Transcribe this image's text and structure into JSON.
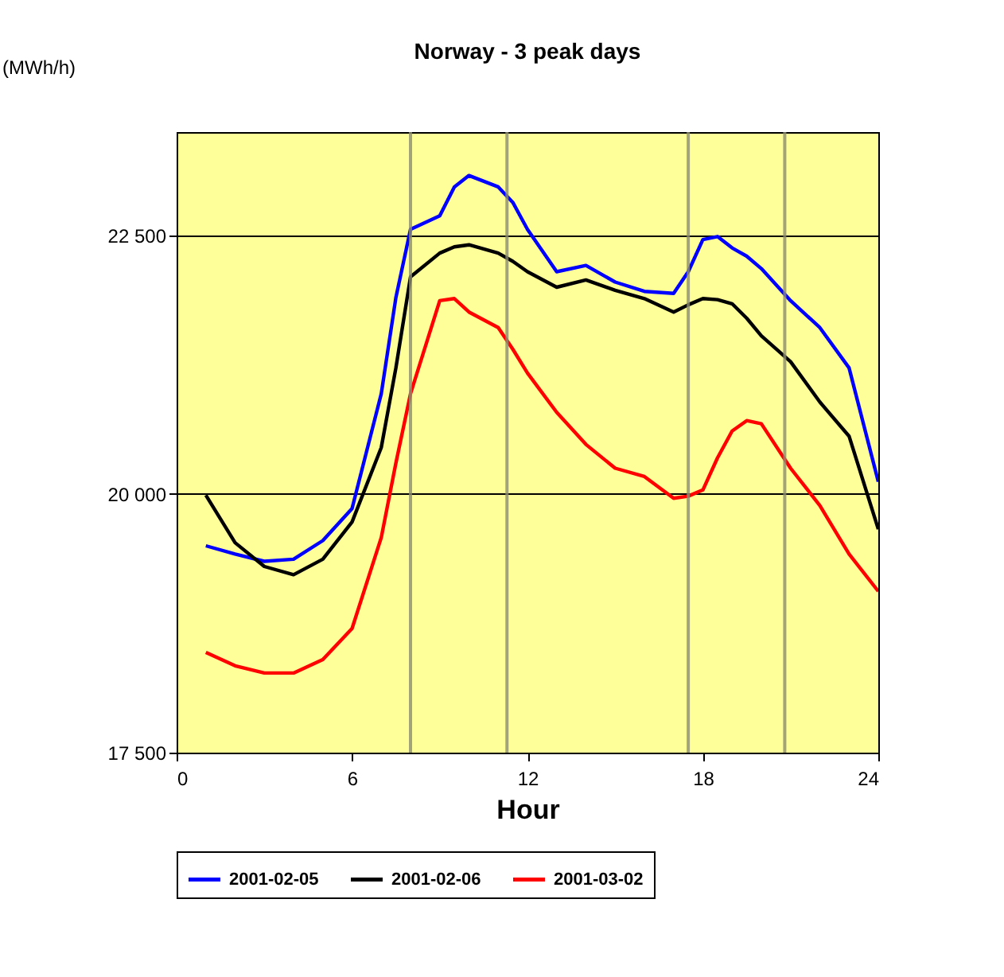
{
  "chart_data": {
    "type": "line",
    "title": "Norway - 3 peak days",
    "xlabel": "Hour",
    "ylabel": "(MWh/h)",
    "x": [
      1,
      2,
      3,
      4,
      5,
      6,
      7,
      7.5,
      8,
      9,
      9.5,
      10,
      11,
      11.5,
      12,
      13,
      14,
      15,
      16,
      17,
      17.5,
      18,
      18.5,
      19,
      19.5,
      20,
      21,
      22,
      23,
      24
    ],
    "series": [
      {
        "name": "2001-02-05",
        "color": "#0000ff",
        "values": [
          19500,
          19420,
          19350,
          19370,
          19550,
          19860,
          20970,
          21900,
          22560,
          22690,
          22970,
          23080,
          22970,
          22820,
          22560,
          22150,
          22210,
          22050,
          21960,
          21940,
          22150,
          22460,
          22490,
          22380,
          22300,
          22180,
          21870,
          21610,
          21220,
          20120
        ]
      },
      {
        "name": "2001-02-06",
        "color": "#000000",
        "values": [
          19990,
          19530,
          19300,
          19220,
          19370,
          19730,
          20450,
          21220,
          22100,
          22330,
          22390,
          22410,
          22330,
          22250,
          22150,
          22000,
          22070,
          21970,
          21890,
          21760,
          21830,
          21890,
          21880,
          21840,
          21700,
          21530,
          21280,
          20890,
          20560,
          19660
        ]
      },
      {
        "name": "2001-03-02",
        "color": "#ff0000",
        "values": [
          18470,
          18340,
          18270,
          18270,
          18400,
          18700,
          19580,
          20300,
          20970,
          21870,
          21890,
          21760,
          21610,
          21400,
          21170,
          20790,
          20480,
          20250,
          20170,
          19960,
          19980,
          20040,
          20350,
          20610,
          20710,
          20680,
          20250,
          19890,
          19420,
          19060
        ]
      }
    ],
    "xlim": [
      0,
      24
    ],
    "xticks": [
      0,
      6,
      12,
      18,
      24
    ],
    "ylim": [
      17500,
      23500
    ],
    "yticks": [
      {
        "value": 17500,
        "label": "17 500"
      },
      {
        "value": 20000,
        "label": "20 000"
      },
      {
        "value": 22500,
        "label": "22 500"
      }
    ],
    "ref_lines": [
      {
        "axis": "x",
        "value": 8,
        "color": "#8c8c70"
      },
      {
        "axis": "x",
        "value": 11.3,
        "color": "#8c8c70"
      },
      {
        "axis": "x",
        "value": 17.5,
        "color": "#8c8c70"
      },
      {
        "axis": "x",
        "value": 20.8,
        "color": "#8c8c70"
      }
    ],
    "grid": "y",
    "legend": "bottom",
    "marker": "none",
    "line_style": "solid"
  }
}
